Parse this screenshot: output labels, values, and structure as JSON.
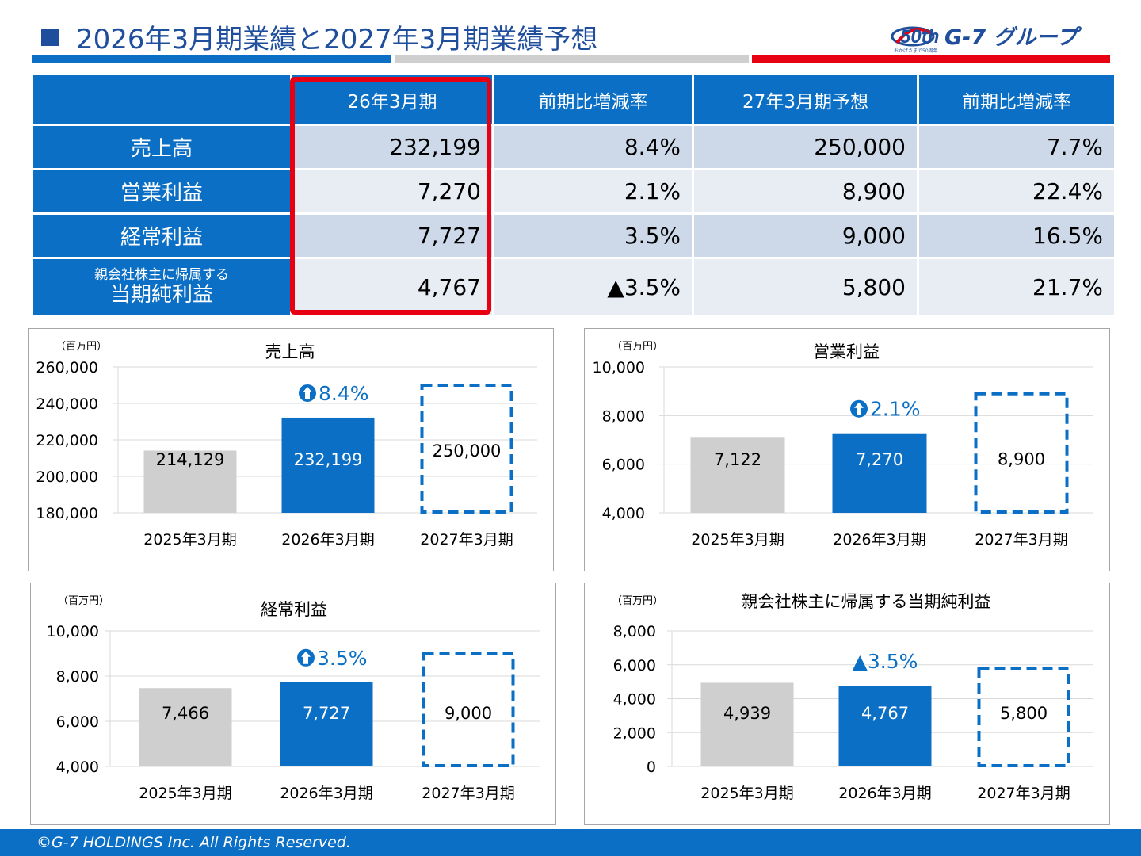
{
  "title": "2026年3月期業績と2027年3月期業績予想",
  "logo": {
    "text": "G-7 グループ",
    "badge": "50th",
    "subtext": "おかげさまで50周年"
  },
  "colors": {
    "primary": "#0b6fc6",
    "navy": "#1f4e9c",
    "gray": "#cfcfcf",
    "red": "#e60012"
  },
  "table": {
    "headers": [
      "",
      "26年3月期",
      "前期比増減率",
      "27年3月期予想",
      "前期比増減率"
    ],
    "rows": [
      {
        "label": "売上高",
        "cells": [
          "232,199",
          "8.4%",
          "250,000",
          "7.7%"
        ]
      },
      {
        "label": "営業利益",
        "cells": [
          "7,270",
          "2.1%",
          "8,900",
          "22.4%"
        ]
      },
      {
        "label": "経常利益",
        "cells": [
          "7,727",
          "3.5%",
          "9,000",
          "16.5%"
        ]
      },
      {
        "label_small": "親会社株主に帰属する",
        "label": "当期純利益",
        "cells": [
          "4,767",
          "▲3.5%",
          "5,800",
          "21.7%"
        ]
      }
    ]
  },
  "chart_data": [
    {
      "type": "bar",
      "title": "売上高",
      "unit": "（百万円）",
      "categories": [
        "2025年3月期",
        "2026年3月期",
        "2027年3月期"
      ],
      "values": [
        214129,
        232199,
        250000
      ],
      "labels": [
        "214,129",
        "232,199",
        "250,000"
      ],
      "ylim": [
        180000,
        260000
      ],
      "yticks": [
        180000,
        200000,
        220000,
        240000,
        260000
      ],
      "ytick_labels": [
        "180,000",
        "200,000",
        "220,000",
        "240,000",
        "260,000"
      ],
      "growth": {
        "text": "8.4%",
        "direction": "up"
      },
      "grid": true
    },
    {
      "type": "bar",
      "title": "営業利益",
      "unit": "（百万円）",
      "categories": [
        "2025年3月期",
        "2026年3月期",
        "2027年3月期"
      ],
      "values": [
        7122,
        7270,
        8900
      ],
      "labels": [
        "7,122",
        "7,270",
        "8,900"
      ],
      "ylim": [
        4000,
        10000
      ],
      "yticks": [
        4000,
        6000,
        8000,
        10000
      ],
      "ytick_labels": [
        "4,000",
        "6,000",
        "8,000",
        "10,000"
      ],
      "growth": {
        "text": "2.1%",
        "direction": "up"
      },
      "grid": true
    },
    {
      "type": "bar",
      "title": "経常利益",
      "unit": "（百万円）",
      "categories": [
        "2025年3月期",
        "2026年3月期",
        "2027年3月期"
      ],
      "values": [
        7466,
        7727,
        9000
      ],
      "labels": [
        "7,466",
        "7,727",
        "9,000"
      ],
      "ylim": [
        4000,
        10000
      ],
      "yticks": [
        4000,
        6000,
        8000,
        10000
      ],
      "ytick_labels": [
        "4,000",
        "6,000",
        "8,000",
        "10,000"
      ],
      "growth": {
        "text": "3.5%",
        "direction": "up"
      },
      "grid": true
    },
    {
      "type": "bar",
      "title": "親会社株主に帰属する当期純利益",
      "unit": "（百万円）",
      "categories": [
        "2025年3月期",
        "2026年3月期",
        "2027年3月期"
      ],
      "values": [
        4939,
        4767,
        5800
      ],
      "labels": [
        "4,939",
        "4,767",
        "5,800"
      ],
      "ylim": [
        0,
        8000
      ],
      "yticks": [
        0,
        2000,
        4000,
        6000,
        8000
      ],
      "ytick_labels": [
        "0",
        "2,000",
        "4,000",
        "6,000",
        "8,000"
      ],
      "growth": {
        "text": "▲3.5%",
        "direction": "down"
      },
      "grid": true
    }
  ],
  "footer": "©G-7 HOLDINGS Inc. All Rights Reserved."
}
